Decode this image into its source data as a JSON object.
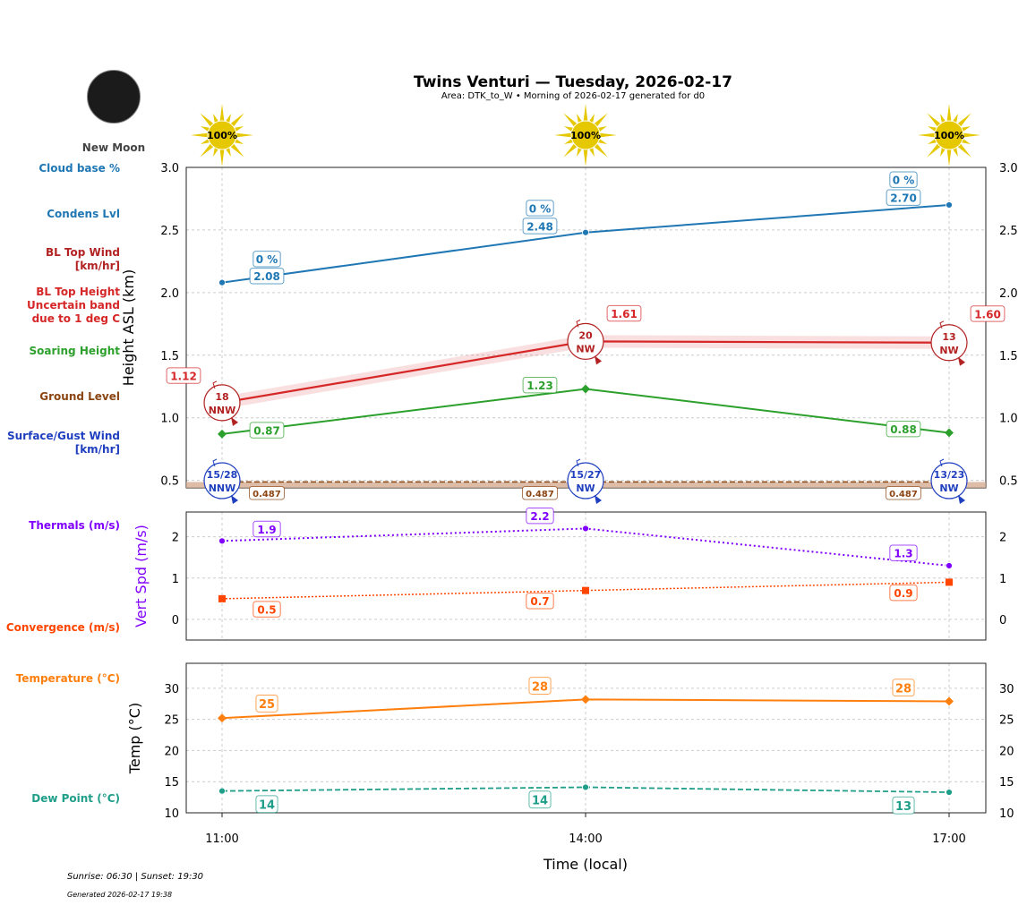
{
  "title": "Twins Venturi — Tuesday, 2026-02-17",
  "subtitle": "Area: DTK_to_W • Morning of 2026-02-17 generated for d0",
  "moon": {
    "phase": "New Moon",
    "color": "#1b1b1b"
  },
  "sun_icons": [
    "100%",
    "100%",
    "100%"
  ],
  "side_labels": [
    {
      "text": "Cloud base %",
      "color": "#1f77b4"
    },
    {
      "text": "Condens Lvl",
      "color": "#1f77b4"
    },
    {
      "text": "BL Top Wind\n[km/hr]",
      "color": "#b22222"
    },
    {
      "text": "BL Top Height\nUncertain band\ndue to 1 deg C",
      "color": "#d62728"
    },
    {
      "text": "Soaring Height",
      "color": "#2ca02c"
    },
    {
      "text": "Ground Level",
      "color": "#8b4513"
    },
    {
      "text": "Surface/Gust Wind\n[km/hr]",
      "color": "#1f3fbf"
    },
    {
      "text": "Thermals (m/s)",
      "color": "#8000ff"
    },
    {
      "text": "Convergence (m/s)",
      "color": "#ff4500"
    },
    {
      "text": "Temperature (°C)",
      "color": "#ff7f0e"
    },
    {
      "text": "Dew Point (°C)",
      "color": "#1f9e89"
    }
  ],
  "footer": {
    "sun": "Sunrise: 06:30 | Sunset: 19:30",
    "generated": "Generated 2026-02-17 19:38"
  },
  "chart_data": [
    {
      "type": "line",
      "ylabel": "Height ASL (km)",
      "ylim": [
        0.44,
        3.0
      ],
      "yticks": [
        "0.5",
        "1.0",
        "1.5",
        "2.0",
        "2.5",
        "3.0"
      ],
      "grid": true,
      "x": [
        "11:00",
        "14:00",
        "17:00"
      ],
      "series": [
        {
          "key": "condens",
          "values": [
            2.08,
            2.48,
            2.7
          ],
          "labels": [
            "2.08",
            "2.48",
            "2.70"
          ],
          "color": "#1f77b4"
        },
        {
          "key": "cloudbase",
          "labels": [
            "0 %",
            "0 %",
            "0 %"
          ],
          "color": "#1f77b4"
        },
        {
          "key": "bltop",
          "values": [
            1.12,
            1.61,
            1.6
          ],
          "labels": [
            "1.12",
            "1.61",
            "1.60"
          ],
          "band": 0.05,
          "color": "#d62728"
        },
        {
          "key": "soaring",
          "values": [
            0.87,
            1.23,
            0.88
          ],
          "labels": [
            "0.87",
            "1.23",
            "0.88"
          ],
          "color": "#2ca02c"
        },
        {
          "key": "ground",
          "values": [
            0.487,
            0.487,
            0.487
          ],
          "labels": [
            "0.487",
            "0.487",
            "0.487"
          ],
          "color": "#8b4513"
        }
      ],
      "bl_wind": [
        {
          "speed": "18",
          "dir": "NNW"
        },
        {
          "speed": "20",
          "dir": "NW"
        },
        {
          "speed": "13",
          "dir": "NW"
        }
      ],
      "surface_wind": [
        {
          "speed": "15/28",
          "dir": "NNW"
        },
        {
          "speed": "15/27",
          "dir": "NW"
        },
        {
          "speed": "13/23",
          "dir": "NW"
        }
      ]
    },
    {
      "type": "line",
      "ylabel": "Vert Spd (m/s)",
      "ylim": [
        -0.5,
        2.6
      ],
      "yticks": [
        "0",
        "1",
        "2"
      ],
      "grid": true,
      "x": [
        "11:00",
        "14:00",
        "17:00"
      ],
      "series": [
        {
          "key": "thermals",
          "values": [
            1.9,
            2.2,
            1.3
          ],
          "labels": [
            "1.9",
            "2.2",
            "1.3"
          ],
          "color": "#8000ff"
        },
        {
          "key": "convergence",
          "values": [
            0.5,
            0.7,
            0.9
          ],
          "labels": [
            "0.5",
            "0.7",
            "0.9"
          ],
          "color": "#ff4500"
        }
      ]
    },
    {
      "type": "line",
      "ylabel": "Temp (°C)",
      "xlabel": "Time (local)",
      "ylim": [
        10,
        34
      ],
      "yticks": [
        "10",
        "15",
        "20",
        "25",
        "30"
      ],
      "grid": true,
      "x": [
        "11:00",
        "14:00",
        "17:00"
      ],
      "series": [
        {
          "key": "temp",
          "values": [
            25.2,
            28.2,
            27.9
          ],
          "labels": [
            "25",
            "28",
            "28"
          ],
          "color": "#ff7f0e"
        },
        {
          "key": "dew",
          "values": [
            13.5,
            14.1,
            13.3
          ],
          "labels": [
            "14",
            "14",
            "13"
          ],
          "color": "#1f9e89"
        }
      ]
    }
  ]
}
